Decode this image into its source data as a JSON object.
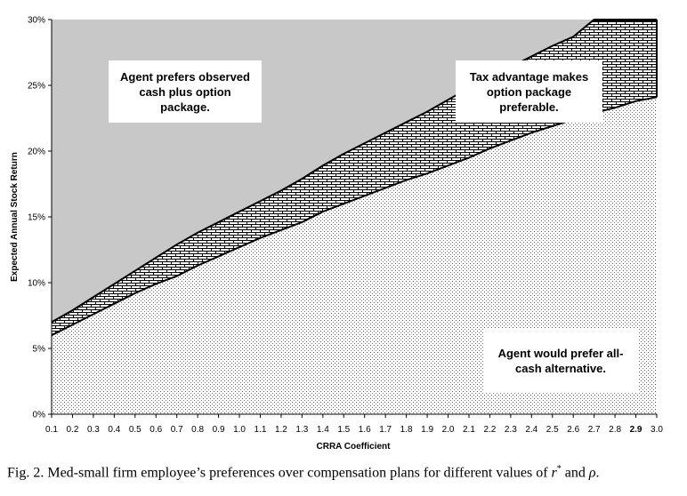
{
  "chart_data": {
    "type": "area",
    "title": "",
    "xlabel": "CRRA Coefficient",
    "ylabel": "Expected Annual Stock Return",
    "x": [
      0.1,
      0.2,
      0.3,
      0.4,
      0.5,
      0.6,
      0.7,
      0.8,
      0.9,
      1.0,
      1.1,
      1.2,
      1.3,
      1.4,
      1.5,
      1.6,
      1.7,
      1.8,
      1.9,
      2.0,
      2.1,
      2.2,
      2.3,
      2.4,
      2.5,
      2.6,
      2.7,
      2.8,
      2.9,
      3.0
    ],
    "x_tick_labels": [
      "0.1",
      "0.2",
      "0.3",
      "0.4",
      "0.5",
      "0.6",
      "0.7",
      "0.8",
      "0.9",
      "1.0",
      "1.1",
      "1.2",
      "1.3",
      "1.4",
      "1.5",
      "1.6",
      "1.7",
      "1.8",
      "1.9",
      "2.0",
      "2.1",
      "2.2",
      "2.3",
      "2.4",
      "2.5",
      "2.6",
      "2.7",
      "2.8",
      "2.9",
      "3.0"
    ],
    "bold_x_tick": "2.9",
    "y_tick_labels": [
      "0%",
      "5%",
      "10%",
      "15%",
      "20%",
      "25%",
      "30%"
    ],
    "y_ticks": [
      0,
      5,
      10,
      15,
      20,
      25,
      30
    ],
    "ylim": [
      0,
      30
    ],
    "series": [
      {
        "values": [
          6.0,
          6.8,
          7.6,
          8.4,
          9.2,
          9.9,
          10.5,
          11.3,
          12.0,
          12.7,
          13.4,
          14.0,
          14.6,
          15.4,
          16.0,
          16.6,
          17.2,
          17.8,
          18.3,
          18.9,
          19.5,
          20.2,
          20.8,
          21.4,
          21.9,
          22.4,
          22.9,
          23.3,
          23.8,
          24.1
        ]
      },
      {
        "values": [
          7.0,
          7.9,
          8.9,
          9.9,
          10.9,
          11.9,
          12.9,
          13.8,
          14.6,
          15.4,
          16.2,
          17.0,
          17.9,
          18.9,
          19.8,
          20.6,
          21.4,
          22.2,
          23.0,
          23.9,
          24.8,
          25.6,
          26.4,
          27.2,
          28.0,
          28.7,
          30.0,
          30.0,
          30.0,
          30.0
        ]
      }
    ],
    "region_colors": {
      "top": "#c8c8c8",
      "middle": "#ffffff",
      "bottom": "#ffffff",
      "line": "#000000"
    },
    "grid": false
  },
  "annotations": {
    "top_left": [
      "Agent prefers observed",
      "cash plus option",
      "package."
    ],
    "top_right": [
      "Tax advantage makes",
      "option package",
      "preferable."
    ],
    "bottom_right": [
      "Agent would prefer all-",
      "cash alternative."
    ]
  },
  "caption": {
    "prefix": "Fig. 2.  Med-small firm employee’s preferences over compensation plans for different values of ",
    "r_symbol": "r",
    "star": "*",
    "mid": " and ",
    "rho": "ρ",
    "suffix": "."
  }
}
